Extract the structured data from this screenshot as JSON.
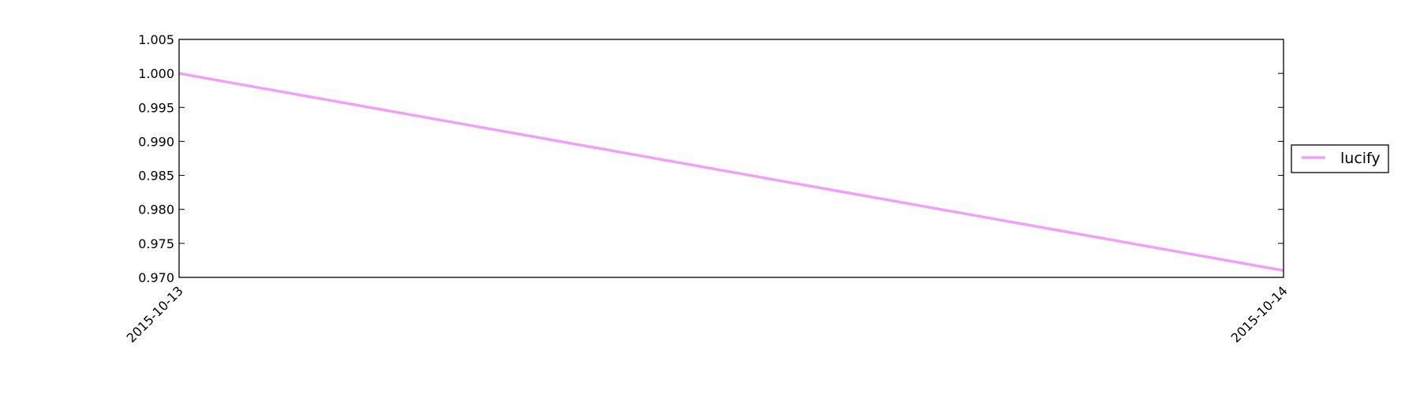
{
  "chart_data": {
    "type": "line",
    "title": "",
    "xlabel": "",
    "ylabel": "",
    "x": [
      "2015-10-13",
      "2015-10-14"
    ],
    "series": [
      {
        "name": "lucify",
        "values": [
          1.0,
          0.971
        ]
      }
    ],
    "ylim": [
      0.97,
      1.005
    ],
    "yticks": [
      "0.970",
      "0.975",
      "0.980",
      "0.985",
      "0.990",
      "0.995",
      "1.000",
      "1.005"
    ],
    "xticks": [
      "2015-10-13",
      "2015-10-14"
    ],
    "grid": false,
    "legend": {
      "placement": "outside-right",
      "entries": [
        "lucify"
      ]
    },
    "colors": {
      "lucify": "#f0a0f8"
    }
  }
}
